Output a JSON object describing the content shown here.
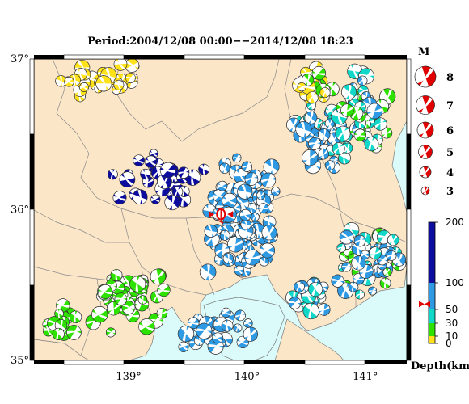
{
  "title": "Period:2004/12/08 00:00−−2014/12/08 18:23",
  "lat_labels": [
    {
      "value": 37,
      "text": "37°"
    },
    {
      "value": 36,
      "text": "36°"
    },
    {
      "value": 35,
      "text": "35°"
    }
  ],
  "lon_labels": [
    {
      "value": 139,
      "text": "139°"
    },
    {
      "value": 140,
      "text": "140°"
    },
    {
      "value": 141,
      "text": "141°"
    }
  ],
  "map_extent": {
    "lon_min": 138.2,
    "lon_max": 141.35,
    "lat_min": 35.0,
    "lat_max": 37.0
  },
  "magnitude_legend": {
    "title": "M",
    "items": [
      {
        "label": "8",
        "magnitude": 8
      },
      {
        "label": "7",
        "magnitude": 7
      },
      {
        "label": "6",
        "magnitude": 6
      },
      {
        "label": "5",
        "magnitude": 5
      },
      {
        "label": "4",
        "magnitude": 4
      },
      {
        "label": "3",
        "magnitude": 3
      }
    ]
  },
  "depth_legend": {
    "title": "Depth(km)",
    "ticks": [
      {
        "label": "200",
        "value": 200
      },
      {
        "label": "100",
        "value": 100
      },
      {
        "label": "50",
        "value": 50
      },
      {
        "label": "30",
        "value": 30
      },
      {
        "label": "10",
        "value": 10
      },
      {
        "label": "0",
        "value": 0
      }
    ],
    "bands": [
      {
        "from": 0,
        "to": 10,
        "color": "#ffe21a"
      },
      {
        "from": 10,
        "to": 30,
        "color": "#2ee200"
      },
      {
        "from": 30,
        "to": 50,
        "color": "#10d8c8"
      },
      {
        "from": 50,
        "to": 100,
        "color": "#2f9ae4"
      },
      {
        "from": 100,
        "to": 200,
        "color": "#0c0c9e"
      }
    ],
    "marker_depth": 60
  },
  "main_event": {
    "lon": 139.78,
    "lat": 35.97,
    "color": "#e00000",
    "icon": "focal-mechanism-star-icon"
  },
  "colors": {
    "land": "#fce6c8",
    "sea": "#dbfbfb",
    "prefecture_border": "#7a7a7a",
    "accent_red": "#e00000"
  }
}
